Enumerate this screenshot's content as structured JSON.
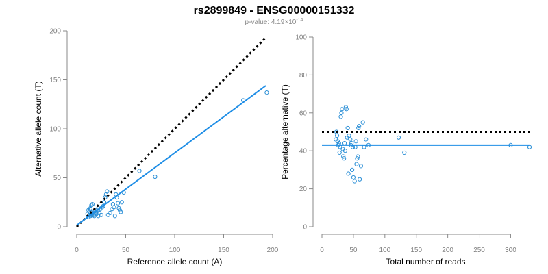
{
  "figure": {
    "title": "rs2899849 - ENSG00000151332",
    "subtitle_prefix": "p-value: 4.19×10",
    "subtitle_exponent": "-14"
  },
  "colors": {
    "points": "#2b8fd6",
    "fit_line": "#1f8ee6",
    "reference_line": "#000000"
  },
  "chart_data": [
    {
      "type": "scatter",
      "xlabel": "Reference allele count (A)",
      "ylabel": "Alternative allele count (T)",
      "xlim": [
        0,
        200
      ],
      "ylim": [
        0,
        200
      ],
      "xticks": [
        0,
        50,
        100,
        150,
        200
      ],
      "yticks": [
        0,
        50,
        100,
        150,
        200
      ],
      "points": [
        [
          12,
          10
        ],
        [
          13,
          12
        ],
        [
          14,
          11
        ],
        [
          15,
          13
        ],
        [
          13,
          15
        ],
        [
          12,
          17
        ],
        [
          14,
          19
        ],
        [
          15,
          22
        ],
        [
          16,
          23
        ],
        [
          14,
          18
        ],
        [
          16,
          15
        ],
        [
          17,
          12
        ],
        [
          18,
          11
        ],
        [
          19,
          14
        ],
        [
          20,
          13
        ],
        [
          21,
          16
        ],
        [
          22,
          11
        ],
        [
          23,
          14
        ],
        [
          24,
          18
        ],
        [
          25,
          12
        ],
        [
          26,
          20
        ],
        [
          27,
          21
        ],
        [
          28,
          25
        ],
        [
          29,
          30
        ],
        [
          30,
          33
        ],
        [
          31,
          36
        ],
        [
          32,
          12
        ],
        [
          34,
          14
        ],
        [
          36,
          18
        ],
        [
          37,
          23
        ],
        [
          38,
          20
        ],
        [
          39,
          11
        ],
        [
          40,
          33
        ],
        [
          41,
          30
        ],
        [
          42,
          24
        ],
        [
          43,
          19
        ],
        [
          44,
          17
        ],
        [
          45,
          15
        ],
        [
          46,
          25
        ],
        [
          48,
          35
        ],
        [
          18,
          13
        ],
        [
          20,
          17
        ],
        [
          22,
          19
        ],
        [
          15,
          12
        ],
        [
          17,
          14
        ],
        [
          11,
          13
        ],
        [
          64,
          57
        ],
        [
          80,
          51
        ],
        [
          170,
          129
        ],
        [
          194,
          137
        ]
      ],
      "fit_line": {
        "from": [
          0,
          1.5
        ],
        "to": [
          193,
          144
        ]
      },
      "reference_line": {
        "from": [
          0,
          0
        ],
        "to": [
          193,
          193
        ]
      }
    },
    {
      "type": "scatter",
      "xlabel": "Total number of reads",
      "ylabel": "Percentage alternative (T)",
      "xlim": [
        0,
        330
      ],
      "ylim": [
        0,
        100
      ],
      "xticks": [
        0,
        50,
        100,
        150,
        200,
        250,
        300
      ],
      "yticks": [
        0,
        20,
        40,
        60,
        80,
        100
      ],
      "points": [
        [
          22,
          46
        ],
        [
          23,
          50
        ],
        [
          24,
          48
        ],
        [
          25,
          45
        ],
        [
          26,
          43
        ],
        [
          27,
          44
        ],
        [
          28,
          39
        ],
        [
          29,
          42
        ],
        [
          30,
          58
        ],
        [
          31,
          60
        ],
        [
          32,
          62
        ],
        [
          33,
          41
        ],
        [
          34,
          37
        ],
        [
          35,
          36
        ],
        [
          36,
          44
        ],
        [
          37,
          40
        ],
        [
          38,
          63
        ],
        [
          39,
          62
        ],
        [
          40,
          47
        ],
        [
          41,
          52
        ],
        [
          42,
          28
        ],
        [
          43,
          48
        ],
        [
          45,
          46
        ],
        [
          46,
          43
        ],
        [
          47,
          44
        ],
        [
          48,
          30
        ],
        [
          49,
          42
        ],
        [
          50,
          26
        ],
        [
          52,
          24
        ],
        [
          53,
          42
        ],
        [
          54,
          45
        ],
        [
          55,
          33
        ],
        [
          56,
          36
        ],
        [
          57,
          37
        ],
        [
          58,
          52
        ],
        [
          59,
          53
        ],
        [
          60,
          25
        ],
        [
          62,
          32
        ],
        [
          65,
          55
        ],
        [
          67,
          42
        ],
        [
          70,
          46
        ],
        [
          74,
          43
        ],
        [
          122,
          47
        ],
        [
          131,
          39
        ],
        [
          300,
          43
        ],
        [
          330,
          42
        ]
      ],
      "fit_line": {
        "from": [
          0,
          43
        ],
        "to": [
          330,
          43
        ]
      },
      "reference_line": {
        "from": [
          0,
          50
        ],
        "to": [
          330,
          50
        ]
      }
    }
  ]
}
